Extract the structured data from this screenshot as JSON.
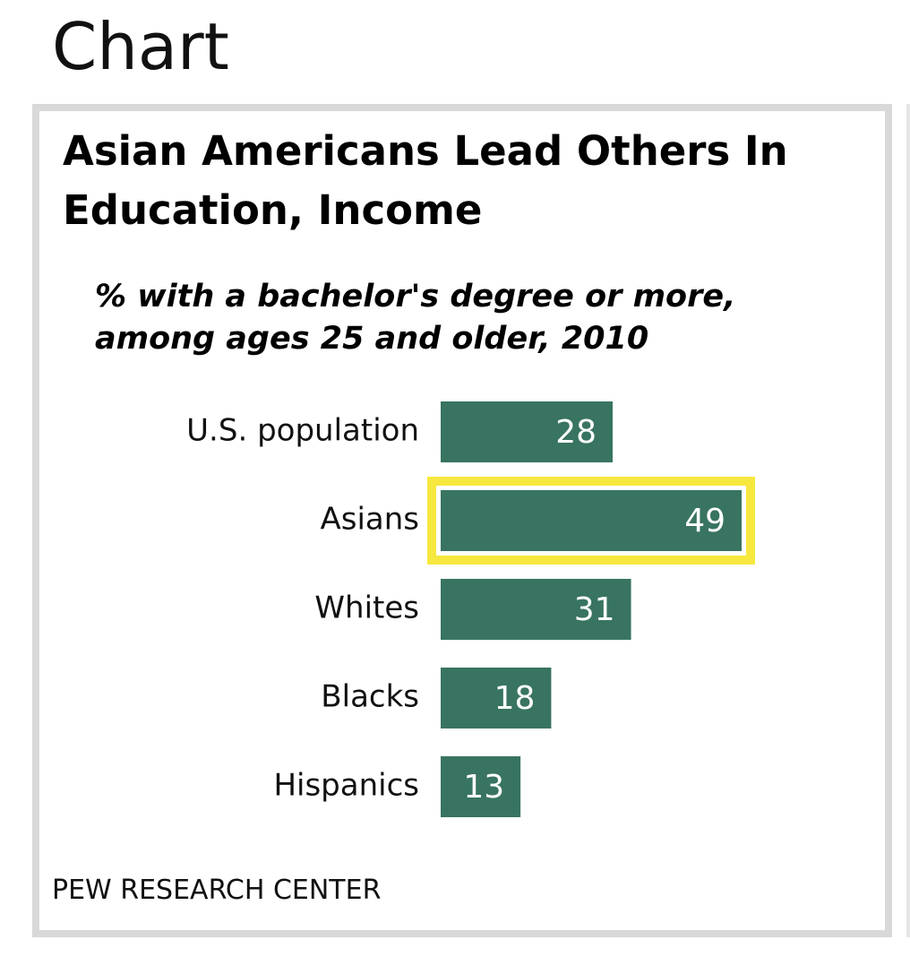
{
  "page": {
    "heading": "Chart"
  },
  "chart_data": {
    "type": "bar",
    "orientation": "horizontal",
    "title": "Asian Americans Lead Others In Education, Income",
    "subtitle": "% with a bachelor's degree or more, among ages 25 and older, 2010",
    "categories": [
      "U.S. population",
      "Asians",
      "Whites",
      "Blacks",
      "Hispanics"
    ],
    "values": [
      28,
      49,
      31,
      18,
      13
    ],
    "data_labels": [
      "28",
      "49",
      "31",
      "18",
      "13"
    ],
    "highlighted_category": "Asians",
    "xlabel": "",
    "ylabel": "",
    "grid": false,
    "legend": "none",
    "source": "PEW RESEARCH CENTER",
    "colors": {
      "bar": "#387461",
      "highlight": "#f6e83e",
      "bar_label": "#ffffff",
      "category_label": "#111111",
      "card_border": "#d9d9d9"
    }
  }
}
